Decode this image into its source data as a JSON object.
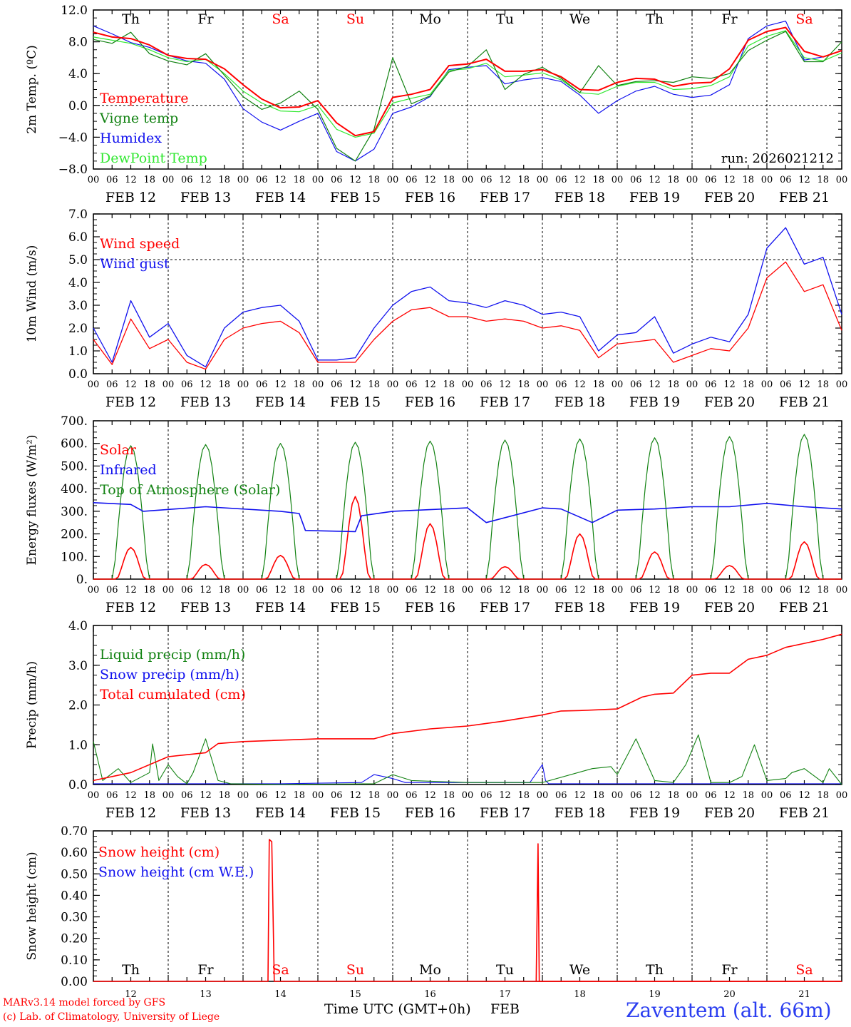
{
  "colors": {
    "red": "#ff0000",
    "green": "#128212",
    "blue": "#1010ee",
    "light_green": "#33e833",
    "axis": "#000000",
    "station": "#2b3ef0"
  },
  "days": [
    "Th",
    "Fr",
    "Sa",
    "Su",
    "Mo",
    "Tu",
    "We",
    "Th",
    "Fr",
    "Sa"
  ],
  "weekend_flags": [
    false,
    false,
    true,
    true,
    false,
    false,
    false,
    false,
    false,
    true
  ],
  "dates": [
    "FEB 12",
    "FEB 13",
    "FEB 14",
    "FEB 15",
    "FEB 16",
    "FEB 17",
    "FEB 18",
    "FEB 19",
    "FEB 20",
    "FEB 21"
  ],
  "hour_ticks": [
    "00",
    "06",
    "12",
    "18"
  ],
  "end_tick": "00",
  "footer": {
    "line1": "MARv3.14 model forced by GFS",
    "line2": "(c) Lab. of Climatology, University of Liege",
    "xlabel": "Time UTC (GMT+0h)",
    "month": "FEB",
    "station": "Zaventem (alt. 66m)",
    "day_numbers": [
      "12",
      "13",
      "14",
      "15",
      "16",
      "17",
      "18",
      "19",
      "20",
      "21"
    ]
  },
  "chart_data": [
    {
      "id": "temp",
      "type": "line",
      "ylabel": "2m Temp. (ºC)",
      "ylim": [
        -8,
        12
      ],
      "yticks": [
        -8,
        -4,
        0,
        4,
        8,
        12
      ],
      "ytick_labels": [
        "−8.0",
        "−4.0",
        "0.0",
        "4.0",
        "8.0",
        "12.0"
      ],
      "hline": 0,
      "run_label": "run: 2026021212",
      "legend": [
        "Temperature",
        "Vigne temp",
        "Humidex",
        "DewPoint Temp"
      ],
      "x_hours": [
        0,
        6,
        12,
        18,
        24,
        30,
        36,
        42,
        48,
        54,
        60,
        66,
        72,
        78,
        84,
        90,
        96,
        102,
        108,
        114,
        120,
        126,
        132,
        138,
        144,
        150,
        156,
        162,
        168,
        174,
        180,
        186,
        192,
        198,
        204,
        210,
        216,
        222,
        228,
        234,
        240
      ],
      "series": [
        {
          "name": "Temperature",
          "color": "red",
          "values": [
            9.2,
            8.6,
            8.4,
            7.6,
            6.3,
            5.9,
            5.8,
            4.6,
            2.6,
            0.8,
            -0.3,
            -0.2,
            0.6,
            -2.2,
            -3.8,
            -3.3,
            1.0,
            1.4,
            2.0,
            5.0,
            5.2,
            5.8,
            4.3,
            4.3,
            4.5,
            3.6,
            2.0,
            1.9,
            2.9,
            3.4,
            3.3,
            2.4,
            2.8,
            2.9,
            4.6,
            8.2,
            9.3,
            9.8,
            6.8,
            6.1,
            6.9
          ]
        },
        {
          "name": "Vigne temp",
          "color": "green",
          "values": [
            8.3,
            7.8,
            9.2,
            6.5,
            5.6,
            5.1,
            6.5,
            3.8,
            1.1,
            -0.5,
            0.3,
            1.8,
            -0.5,
            -5.4,
            -7.0,
            -3.0,
            6.0,
            0.2,
            1.2,
            4.2,
            4.9,
            7.0,
            2.0,
            3.9,
            4.8,
            3.4,
            1.6,
            5.0,
            2.5,
            3.0,
            3.1,
            2.9,
            3.6,
            3.4,
            4.0,
            6.9,
            8.2,
            9.3,
            5.5,
            5.5,
            8.0
          ]
        },
        {
          "name": "Humidex",
          "color": "blue",
          "values": [
            10.0,
            9.0,
            7.9,
            7.3,
            6.3,
            5.6,
            5.3,
            3.3,
            -0.4,
            -2.1,
            -3.1,
            -2.0,
            -1.0,
            -5.8,
            -7.0,
            -5.5,
            -1.0,
            -0.2,
            1.1,
            4.5,
            4.8,
            5.0,
            2.7,
            3.2,
            3.5,
            3.0,
            1.3,
            -1.0,
            0.6,
            1.8,
            2.4,
            1.4,
            1.0,
            1.3,
            2.6,
            8.4,
            10.0,
            10.6,
            5.7,
            6.1,
            6.9
          ]
        },
        {
          "name": "DewPoint Temp",
          "color": "light_green",
          "values": [
            8.6,
            8.2,
            7.8,
            7.0,
            6.0,
            5.5,
            5.8,
            4.0,
            1.8,
            0.3,
            -0.7,
            -0.8,
            0.0,
            -3.0,
            -4.0,
            -3.5,
            0.3,
            0.9,
            1.4,
            4.4,
            4.6,
            5.3,
            3.6,
            3.8,
            4.1,
            3.2,
            1.6,
            1.4,
            2.4,
            2.9,
            2.9,
            2.0,
            2.1,
            2.5,
            3.6,
            7.5,
            8.7,
            9.4,
            6.0,
            5.6,
            6.6
          ]
        }
      ]
    },
    {
      "id": "wind",
      "type": "line",
      "ylabel": "10m Wind (m/s)",
      "ylim": [
        0,
        7
      ],
      "yticks": [
        0,
        1,
        2,
        3,
        4,
        5,
        6,
        7
      ],
      "ytick_labels": [
        "0.0",
        "1.0",
        "2.0",
        "3.0",
        "4.0",
        "5.0",
        "6.0",
        "7.0"
      ],
      "hline": 5,
      "legend": [
        "Wind speed",
        "Wind gust"
      ],
      "x_hours": [
        0,
        6,
        12,
        18,
        24,
        30,
        36,
        42,
        48,
        54,
        60,
        66,
        72,
        78,
        84,
        90,
        96,
        102,
        108,
        114,
        120,
        126,
        132,
        138,
        144,
        150,
        156,
        162,
        168,
        174,
        180,
        186,
        192,
        198,
        204,
        210,
        216,
        222,
        228,
        234,
        240
      ],
      "series": [
        {
          "name": "Wind speed",
          "color": "red",
          "values": [
            1.5,
            0.4,
            2.4,
            1.1,
            1.5,
            0.5,
            0.2,
            1.5,
            2.0,
            2.2,
            2.3,
            1.8,
            0.5,
            0.5,
            0.5,
            1.5,
            2.3,
            2.8,
            2.9,
            2.5,
            2.5,
            2.3,
            2.4,
            2.3,
            2.0,
            2.1,
            1.9,
            0.7,
            1.3,
            1.4,
            1.5,
            0.5,
            0.8,
            1.1,
            1.0,
            2.0,
            4.2,
            4.9,
            3.6,
            3.9,
            1.9
          ]
        },
        {
          "name": "Wind gust",
          "color": "blue",
          "values": [
            2.0,
            0.5,
            3.2,
            1.6,
            2.2,
            0.8,
            0.3,
            2.0,
            2.7,
            2.9,
            3.0,
            2.3,
            0.6,
            0.6,
            0.7,
            2.0,
            3.0,
            3.6,
            3.8,
            3.2,
            3.1,
            2.9,
            3.2,
            3.0,
            2.6,
            2.7,
            2.5,
            1.0,
            1.7,
            1.8,
            2.5,
            0.9,
            1.3,
            1.6,
            1.4,
            2.6,
            5.5,
            6.4,
            4.8,
            5.1,
            2.6
          ]
        }
      ]
    },
    {
      "id": "energy",
      "type": "line",
      "ylabel": "Energy fluxes (W/m²)",
      "ylim": [
        0,
        700
      ],
      "yticks": [
        0,
        100,
        200,
        300,
        400,
        500,
        600,
        700
      ],
      "ytick_labels": [
        "0.",
        "100.",
        "200.",
        "300.",
        "400.",
        "500.",
        "600.",
        "700."
      ],
      "legend": [
        "Solar",
        "Infrared",
        "Top of Atmosphere (Solar)"
      ],
      "toa_peaks": [
        590,
        595,
        600,
        605,
        610,
        615,
        620,
        625,
        630,
        640
      ],
      "solar_peaks": [
        140,
        65,
        105,
        365,
        245,
        55,
        200,
        120,
        60,
        165
      ],
      "infrared": {
        "x_hours": [
          0,
          12,
          16,
          36,
          60,
          66,
          68,
          84,
          86,
          96,
          120,
          126,
          144,
          150,
          160,
          168,
          180,
          192,
          204,
          216,
          228,
          240
        ],
        "values": [
          338,
          330,
          300,
          320,
          300,
          290,
          215,
          210,
          280,
          300,
          315,
          250,
          315,
          310,
          250,
          305,
          310,
          320,
          320,
          335,
          320,
          310
        ]
      },
      "series_colors": {
        "Solar": "red",
        "Infrared": "blue",
        "Top of Atmosphere (Solar)": "green"
      }
    },
    {
      "id": "precip",
      "type": "line",
      "ylabel": "Precip (mm/h)",
      "ylim": [
        0,
        4
      ],
      "yticks": [
        0,
        1,
        2,
        3,
        4
      ],
      "ytick_labels": [
        "0.0",
        "1.0",
        "2.0",
        "3.0",
        "4.0"
      ],
      "legend": [
        "Liquid precip (mm/h)",
        "Snow precip (mm/h)",
        "Total cumulated (cm)"
      ],
      "series": [
        {
          "name": "Total cumulated (cm)",
          "color": "red",
          "x_hours": [
            0,
            12,
            24,
            36,
            40,
            48,
            72,
            90,
            96,
            108,
            120,
            132,
            144,
            150,
            156,
            168,
            176,
            180,
            186,
            192,
            198,
            204,
            210,
            216,
            222,
            228,
            234,
            240
          ],
          "values": [
            0.1,
            0.3,
            0.7,
            0.8,
            1.03,
            1.08,
            1.15,
            1.15,
            1.28,
            1.4,
            1.47,
            1.6,
            1.75,
            1.85,
            1.86,
            1.9,
            2.2,
            2.27,
            2.3,
            2.75,
            2.8,
            2.8,
            3.15,
            3.25,
            3.45,
            3.55,
            3.65,
            3.78
          ]
        },
        {
          "name": "Liquid precip (mm/h)",
          "color": "green",
          "x_hours": [
            0,
            3,
            8,
            12,
            18,
            19,
            21,
            24,
            27,
            30,
            32,
            36,
            40,
            44,
            60,
            90,
            96,
            102,
            120,
            144,
            160,
            166,
            168,
            174,
            180,
            186,
            190,
            194,
            198,
            204,
            208,
            212,
            216,
            222,
            224,
            228,
            234,
            236,
            240
          ],
          "values": [
            1.08,
            0.1,
            0.4,
            0.05,
            0.3,
            1.02,
            0.1,
            0.5,
            0.2,
            0.02,
            0.3,
            1.15,
            0.1,
            0.02,
            0.0,
            0.02,
            0.25,
            0.1,
            0.05,
            0.05,
            0.4,
            0.45,
            0.25,
            1.15,
            0.1,
            0.05,
            0.5,
            1.25,
            0.05,
            0.05,
            0.2,
            1.0,
            0.1,
            0.15,
            0.3,
            0.4,
            0.05,
            0.4,
            0.0
          ]
        },
        {
          "name": "Snow precip (mm/h)",
          "color": "blue",
          "x_hours": [
            0,
            60,
            86,
            90,
            96,
            100,
            140,
            144,
            145,
            146,
            150,
            240
          ],
          "values": [
            0.02,
            0.02,
            0.05,
            0.25,
            0.15,
            0.05,
            0.05,
            0.5,
            0.1,
            0.02,
            0.02,
            0.02
          ]
        }
      ]
    },
    {
      "id": "snow",
      "type": "line",
      "ylabel": "Snow height (cm)",
      "ylim": [
        0,
        0.7
      ],
      "yticks": [
        0,
        0.1,
        0.2,
        0.3,
        0.4,
        0.5,
        0.6,
        0.7
      ],
      "ytick_labels": [
        "0.00",
        "0.10",
        "0.20",
        "0.30",
        "0.40",
        "0.50",
        "0.60",
        "0.70"
      ],
      "legend": [
        "Snow height (cm)",
        "Snow height (cm W.E.)"
      ],
      "series": [
        {
          "name": "Snow height (cm)",
          "color": "red",
          "x_hours": [
            0,
            56,
            56.4,
            57.2,
            58,
            240
          ],
          "values": [
            0,
            0,
            0.66,
            0.65,
            0,
            0
          ]
        },
        {
          "name": "Snow height spike 2",
          "color": "red",
          "x_hours": [
            142,
            142.6,
            143,
            240
          ],
          "values": [
            0,
            0.64,
            0,
            0
          ]
        }
      ]
    }
  ]
}
